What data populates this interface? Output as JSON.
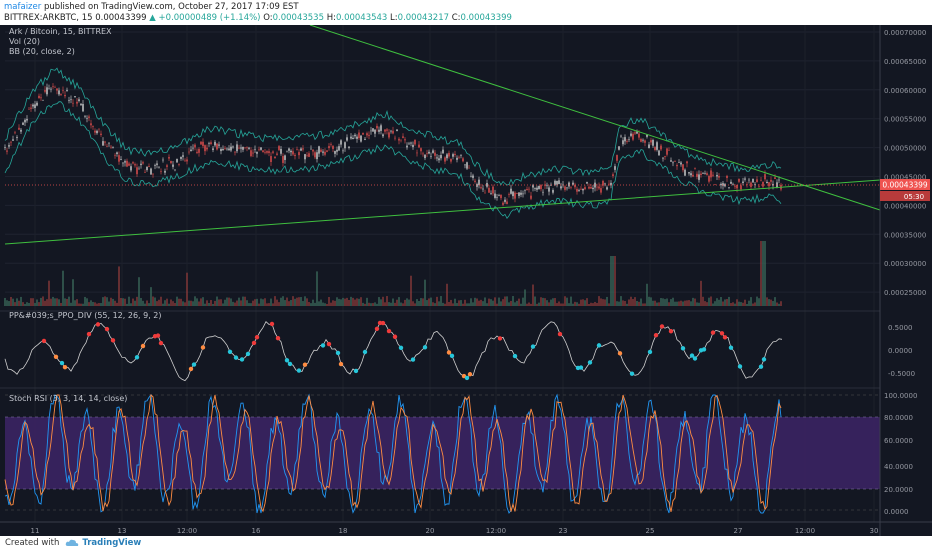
{
  "header": {
    "author": "mafaizer",
    "published_text": "published on TradingView.com, October 27, 2017 17:09 EST",
    "symbol": "BITTREX:ARKBTC, 15",
    "last": "0.00043399",
    "change": "+0.00000489 (+1.14%)",
    "o_label": "O:",
    "o": "0.00043535",
    "h_label": "H:",
    "h": "0.00043543",
    "l_label": "L:",
    "l": "0.00043217",
    "c_label": "C:",
    "c": "0.00043399"
  },
  "legend": {
    "title": "Ark / Bitcoin, 15, BITTREX",
    "vol": "Vol (20)",
    "bb": "BB (20, close, 2)",
    "ppo": "PP&#039;s_PPO_DIV (55, 12, 26, 9, 2)",
    "stoch": "Stoch RSI (3, 3, 14, 14, close)"
  },
  "price_axis": {
    "ticks": [
      "0.00070000",
      "0.00065000",
      "0.00060000",
      "0.00055000",
      "0.00050000",
      "0.00045000",
      "0.00040000",
      "0.00035000",
      "0.00030000",
      "0.00025000"
    ],
    "current_price": "0.00043399",
    "countdown": "05:30"
  },
  "ppo_axis": {
    "ticks": [
      "0.5000",
      "0.0000",
      "-0.5000"
    ]
  },
  "stoch_axis": {
    "ticks": [
      "100.0000",
      "80.0000",
      "60.0000",
      "40.0000",
      "20.0000",
      "0.0000"
    ]
  },
  "time_axis": {
    "labels": [
      "11",
      "13",
      "12:00",
      "16",
      "18",
      "20",
      "12:00",
      "23",
      "25",
      "27",
      "12:00",
      "30"
    ]
  },
  "footer": {
    "created_with": "Created with",
    "brand": "TradingView"
  },
  "colors": {
    "background": "#131722",
    "trendline": "#3fbf3f",
    "bb": "#26a69a",
    "candle_up": "#e0e0e0",
    "candle_down": "#ef5350",
    "stoch_k": "#2196f3",
    "stoch_d": "#ff8c42",
    "stoch_band": "#4a2a7a",
    "price_label": "#ef5350"
  }
}
